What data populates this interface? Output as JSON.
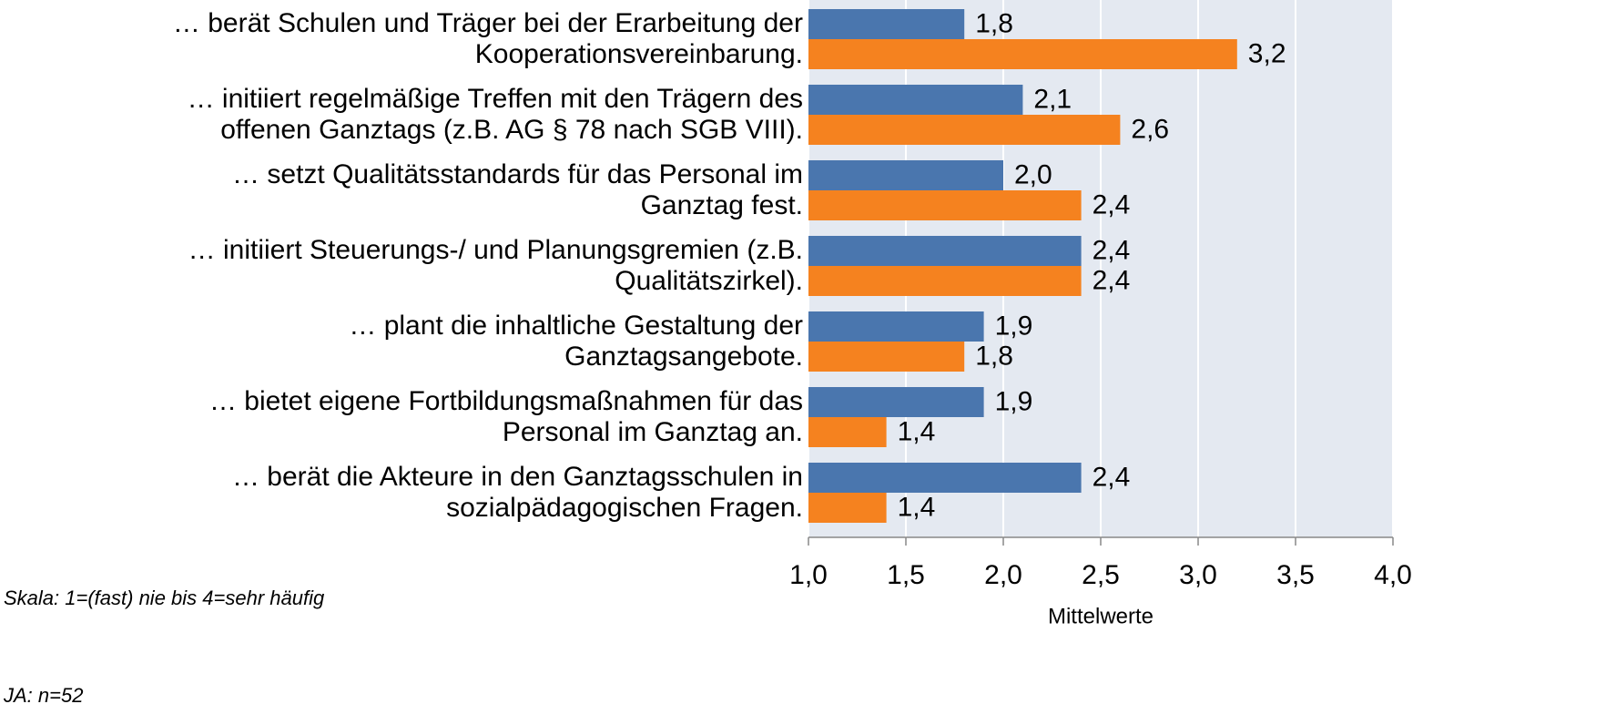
{
  "chart_data": {
    "type": "bar",
    "orientation": "horizontal",
    "categories": [
      [
        "… berät Schulen und Träger bei der Erarbeitung der",
        "Kooperationsvereinbarung."
      ],
      [
        "… initiiert regelmäßige Treffen mit den Trägern des",
        "offenen Ganztags (z.B. AG § 78 nach SGB VIII)."
      ],
      [
        "… setzt Qualitätsstandards für das Personal im",
        "Ganztag fest."
      ],
      [
        "… initiiert Steuerungs-/ und Planungsgremien (z.B.",
        "Qualitätszirkel)."
      ],
      [
        "… plant die inhaltliche Gestaltung der",
        "Ganztagsangebote."
      ],
      [
        "… bietet eigene Fortbildungsmaßnahmen für das",
        "Personal im Ganztag an."
      ],
      [
        "… berät die Akteure in den Ganztagsschulen in",
        "sozialpädagogischen Fragen."
      ]
    ],
    "series": [
      {
        "color": "#4a76ae",
        "values": [
          1.8,
          2.1,
          2.0,
          2.4,
          1.9,
          1.9,
          2.4
        ],
        "value_labels": [
          "1,8",
          "2,1",
          "2,0",
          "2,4",
          "1,9",
          "1,9",
          "2,4"
        ]
      },
      {
        "color": "#f5821f",
        "values": [
          3.2,
          2.6,
          2.4,
          2.4,
          1.8,
          1.4,
          1.4
        ],
        "value_labels": [
          "3,2",
          "2,6",
          "2,4",
          "2,4",
          "1,8",
          "1,4",
          "1,4"
        ]
      }
    ],
    "xlim": [
      1.0,
      4.0
    ],
    "xticks": [
      {
        "value": 1.0,
        "label": "1,0"
      },
      {
        "value": 1.5,
        "label": "1,5"
      },
      {
        "value": 2.0,
        "label": "2,0"
      },
      {
        "value": 2.5,
        "label": "2,5"
      },
      {
        "value": 3.0,
        "label": "3,0"
      },
      {
        "value": 3.5,
        "label": "3,5"
      },
      {
        "value": 4.0,
        "label": "4,0"
      }
    ],
    "x_label": "Mittelwerte",
    "grid": true,
    "background": "#e4e9f1",
    "notes": [
      "Skala: 1=(fast) nie bis 4=sehr häufig",
      "JA: n=52"
    ]
  }
}
